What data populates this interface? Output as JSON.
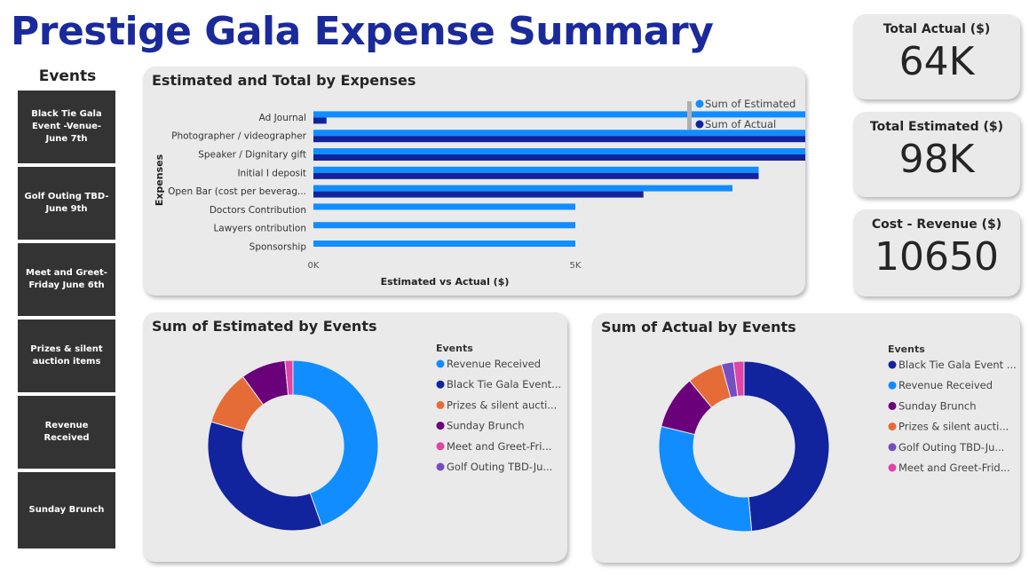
{
  "title": "Prestige Gala Expense Summary",
  "slicer": {
    "title": "Events",
    "items": [
      "Black Tie Gala Event -Venue-June 7th",
      "Golf Outing TBD-June 9th",
      "Meet and Greet-Friday June 6th",
      "Prizes & silent auction items",
      "Revenue Received",
      "Sunday Brunch"
    ]
  },
  "kpis": [
    {
      "label": "Total Actual ($)",
      "value": "64K"
    },
    {
      "label": "Total Estimated ($)",
      "value": "98K"
    },
    {
      "label": "Cost - Revenue ($)",
      "value": "10650"
    }
  ],
  "colors": {
    "estimated": "#118dff",
    "actual": "#12239e",
    "slicer_bg": "#333333",
    "title": "#1b2a9a"
  },
  "chart_data": [
    {
      "type": "bar",
      "orientation": "horizontal",
      "title": "Estimated and Total by Expenses",
      "xlabel": "Estimated vs Actual ($)",
      "ylabel": "Expenses",
      "categories": [
        "Ad Journal",
        "Photographer / videographer",
        "Speaker / Dignitary gift",
        "Initial I deposit",
        "Open Bar (cost per beverag...",
        "Doctors Contribution",
        "Lawyers ontribution",
        "Sponsorship"
      ],
      "series": [
        {
          "name": "Sum of Estimated",
          "values": [
            12300,
            11000,
            10000,
            8500,
            8000,
            5000,
            5000,
            5000
          ]
        },
        {
          "name": "Sum of Actual",
          "values": [
            250,
            11300,
            12100,
            8500,
            6300,
            0,
            0,
            0
          ]
        }
      ],
      "xticks": [
        "0K",
        "5K",
        "10K"
      ],
      "xlim": [
        0,
        14000
      ],
      "legend": "top-right"
    },
    {
      "type": "pie",
      "donut": true,
      "title": "Sum of Estimated by Events",
      "legend_title": "Events",
      "labels": [
        "Revenue Received",
        "Black Tie Gala Event...",
        "Prizes & silent aucti...",
        "Sunday Brunch",
        "Meet and Greet-Fri...",
        "Golf Outing TBD-Ju..."
      ],
      "values": [
        44.5,
        35,
        10.5,
        8.5,
        1.5,
        0
      ],
      "colors": [
        "#118dff",
        "#12239e",
        "#e66c37",
        "#6b007b",
        "#e044a7",
        "#744ec2"
      ],
      "legend": "right"
    },
    {
      "type": "pie",
      "donut": true,
      "title": "Sum of Actual by Events",
      "legend_title": "Events",
      "labels": [
        "Black Tie Gala Event ...",
        "Revenue Received",
        "Sunday Brunch",
        "Prizes & silent aucti...",
        "Golf Outing TBD-Ju...",
        "Meet and Greet-Frid..."
      ],
      "values": [
        49,
        30.5,
        10.3,
        6.8,
        2.3,
        2
      ],
      "colors": [
        "#12239e",
        "#118dff",
        "#6b007b",
        "#e66c37",
        "#744ec2",
        "#e044a7"
      ],
      "legend": "right"
    }
  ]
}
